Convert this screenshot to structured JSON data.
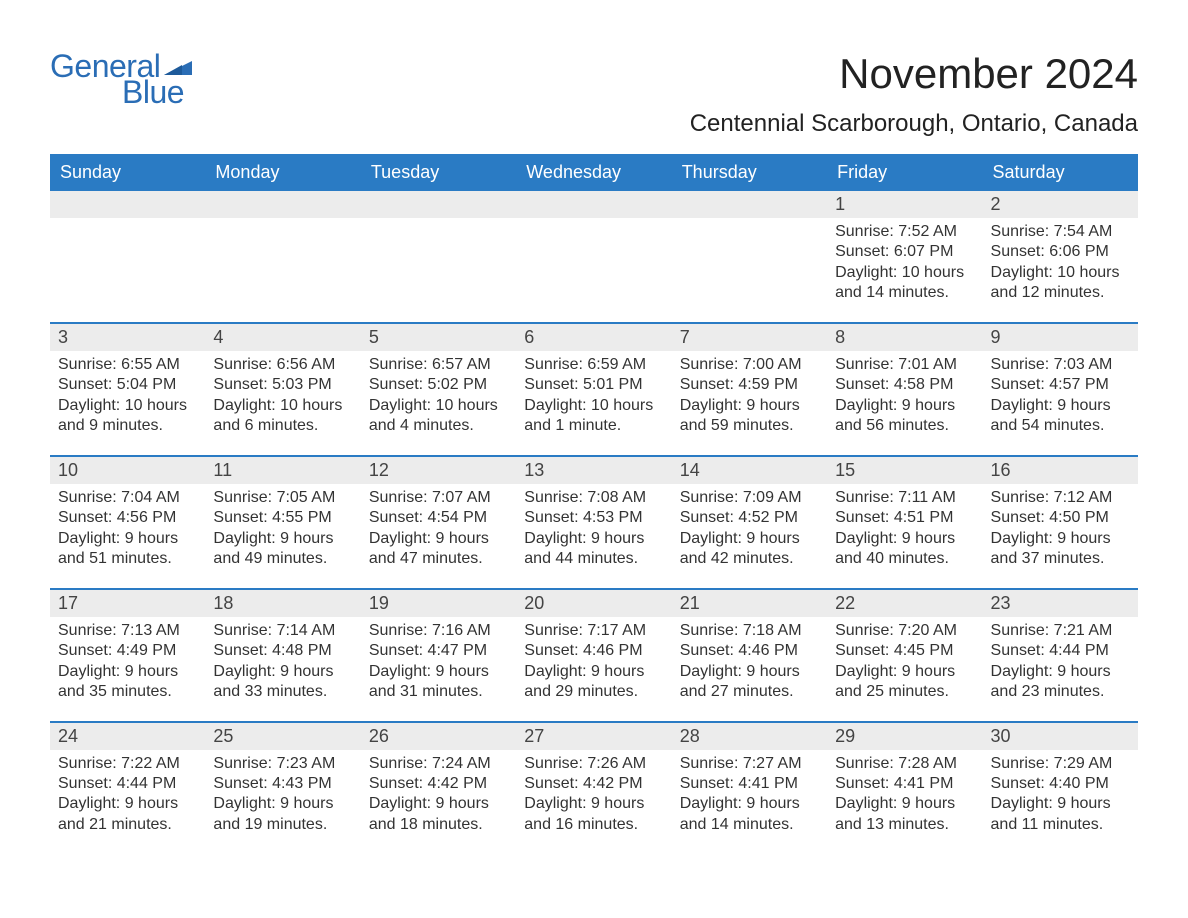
{
  "logo": {
    "general": "General",
    "blue": "Blue"
  },
  "title": "November 2024",
  "location": "Centennial Scarborough, Ontario, Canada",
  "colors": {
    "brand": "#2a6db5",
    "header_bg": "#2a7bc4",
    "header_fg": "#ffffff",
    "daynum_bg": "#ececec",
    "text": "#333333",
    "rule": "#2a7bc4"
  },
  "weekdays": [
    "Sunday",
    "Monday",
    "Tuesday",
    "Wednesday",
    "Thursday",
    "Friday",
    "Saturday"
  ],
  "weeks": [
    [
      null,
      null,
      null,
      null,
      null,
      {
        "n": "1",
        "sunrise": "Sunrise: 7:52 AM",
        "sunset": "Sunset: 6:07 PM",
        "d1": "Daylight: 10 hours",
        "d2": "and 14 minutes."
      },
      {
        "n": "2",
        "sunrise": "Sunrise: 7:54 AM",
        "sunset": "Sunset: 6:06 PM",
        "d1": "Daylight: 10 hours",
        "d2": "and 12 minutes."
      }
    ],
    [
      {
        "n": "3",
        "sunrise": "Sunrise: 6:55 AM",
        "sunset": "Sunset: 5:04 PM",
        "d1": "Daylight: 10 hours",
        "d2": "and 9 minutes."
      },
      {
        "n": "4",
        "sunrise": "Sunrise: 6:56 AM",
        "sunset": "Sunset: 5:03 PM",
        "d1": "Daylight: 10 hours",
        "d2": "and 6 minutes."
      },
      {
        "n": "5",
        "sunrise": "Sunrise: 6:57 AM",
        "sunset": "Sunset: 5:02 PM",
        "d1": "Daylight: 10 hours",
        "d2": "and 4 minutes."
      },
      {
        "n": "6",
        "sunrise": "Sunrise: 6:59 AM",
        "sunset": "Sunset: 5:01 PM",
        "d1": "Daylight: 10 hours",
        "d2": "and 1 minute."
      },
      {
        "n": "7",
        "sunrise": "Sunrise: 7:00 AM",
        "sunset": "Sunset: 4:59 PM",
        "d1": "Daylight: 9 hours",
        "d2": "and 59 minutes."
      },
      {
        "n": "8",
        "sunrise": "Sunrise: 7:01 AM",
        "sunset": "Sunset: 4:58 PM",
        "d1": "Daylight: 9 hours",
        "d2": "and 56 minutes."
      },
      {
        "n": "9",
        "sunrise": "Sunrise: 7:03 AM",
        "sunset": "Sunset: 4:57 PM",
        "d1": "Daylight: 9 hours",
        "d2": "and 54 minutes."
      }
    ],
    [
      {
        "n": "10",
        "sunrise": "Sunrise: 7:04 AM",
        "sunset": "Sunset: 4:56 PM",
        "d1": "Daylight: 9 hours",
        "d2": "and 51 minutes."
      },
      {
        "n": "11",
        "sunrise": "Sunrise: 7:05 AM",
        "sunset": "Sunset: 4:55 PM",
        "d1": "Daylight: 9 hours",
        "d2": "and 49 minutes."
      },
      {
        "n": "12",
        "sunrise": "Sunrise: 7:07 AM",
        "sunset": "Sunset: 4:54 PM",
        "d1": "Daylight: 9 hours",
        "d2": "and 47 minutes."
      },
      {
        "n": "13",
        "sunrise": "Sunrise: 7:08 AM",
        "sunset": "Sunset: 4:53 PM",
        "d1": "Daylight: 9 hours",
        "d2": "and 44 minutes."
      },
      {
        "n": "14",
        "sunrise": "Sunrise: 7:09 AM",
        "sunset": "Sunset: 4:52 PM",
        "d1": "Daylight: 9 hours",
        "d2": "and 42 minutes."
      },
      {
        "n": "15",
        "sunrise": "Sunrise: 7:11 AM",
        "sunset": "Sunset: 4:51 PM",
        "d1": "Daylight: 9 hours",
        "d2": "and 40 minutes."
      },
      {
        "n": "16",
        "sunrise": "Sunrise: 7:12 AM",
        "sunset": "Sunset: 4:50 PM",
        "d1": "Daylight: 9 hours",
        "d2": "and 37 minutes."
      }
    ],
    [
      {
        "n": "17",
        "sunrise": "Sunrise: 7:13 AM",
        "sunset": "Sunset: 4:49 PM",
        "d1": "Daylight: 9 hours",
        "d2": "and 35 minutes."
      },
      {
        "n": "18",
        "sunrise": "Sunrise: 7:14 AM",
        "sunset": "Sunset: 4:48 PM",
        "d1": "Daylight: 9 hours",
        "d2": "and 33 minutes."
      },
      {
        "n": "19",
        "sunrise": "Sunrise: 7:16 AM",
        "sunset": "Sunset: 4:47 PM",
        "d1": "Daylight: 9 hours",
        "d2": "and 31 minutes."
      },
      {
        "n": "20",
        "sunrise": "Sunrise: 7:17 AM",
        "sunset": "Sunset: 4:46 PM",
        "d1": "Daylight: 9 hours",
        "d2": "and 29 minutes."
      },
      {
        "n": "21",
        "sunrise": "Sunrise: 7:18 AM",
        "sunset": "Sunset: 4:46 PM",
        "d1": "Daylight: 9 hours",
        "d2": "and 27 minutes."
      },
      {
        "n": "22",
        "sunrise": "Sunrise: 7:20 AM",
        "sunset": "Sunset: 4:45 PM",
        "d1": "Daylight: 9 hours",
        "d2": "and 25 minutes."
      },
      {
        "n": "23",
        "sunrise": "Sunrise: 7:21 AM",
        "sunset": "Sunset: 4:44 PM",
        "d1": "Daylight: 9 hours",
        "d2": "and 23 minutes."
      }
    ],
    [
      {
        "n": "24",
        "sunrise": "Sunrise: 7:22 AM",
        "sunset": "Sunset: 4:44 PM",
        "d1": "Daylight: 9 hours",
        "d2": "and 21 minutes."
      },
      {
        "n": "25",
        "sunrise": "Sunrise: 7:23 AM",
        "sunset": "Sunset: 4:43 PM",
        "d1": "Daylight: 9 hours",
        "d2": "and 19 minutes."
      },
      {
        "n": "26",
        "sunrise": "Sunrise: 7:24 AM",
        "sunset": "Sunset: 4:42 PM",
        "d1": "Daylight: 9 hours",
        "d2": "and 18 minutes."
      },
      {
        "n": "27",
        "sunrise": "Sunrise: 7:26 AM",
        "sunset": "Sunset: 4:42 PM",
        "d1": "Daylight: 9 hours",
        "d2": "and 16 minutes."
      },
      {
        "n": "28",
        "sunrise": "Sunrise: 7:27 AM",
        "sunset": "Sunset: 4:41 PM",
        "d1": "Daylight: 9 hours",
        "d2": "and 14 minutes."
      },
      {
        "n": "29",
        "sunrise": "Sunrise: 7:28 AM",
        "sunset": "Sunset: 4:41 PM",
        "d1": "Daylight: 9 hours",
        "d2": "and 13 minutes."
      },
      {
        "n": "30",
        "sunrise": "Sunrise: 7:29 AM",
        "sunset": "Sunset: 4:40 PM",
        "d1": "Daylight: 9 hours",
        "d2": "and 11 minutes."
      }
    ]
  ]
}
